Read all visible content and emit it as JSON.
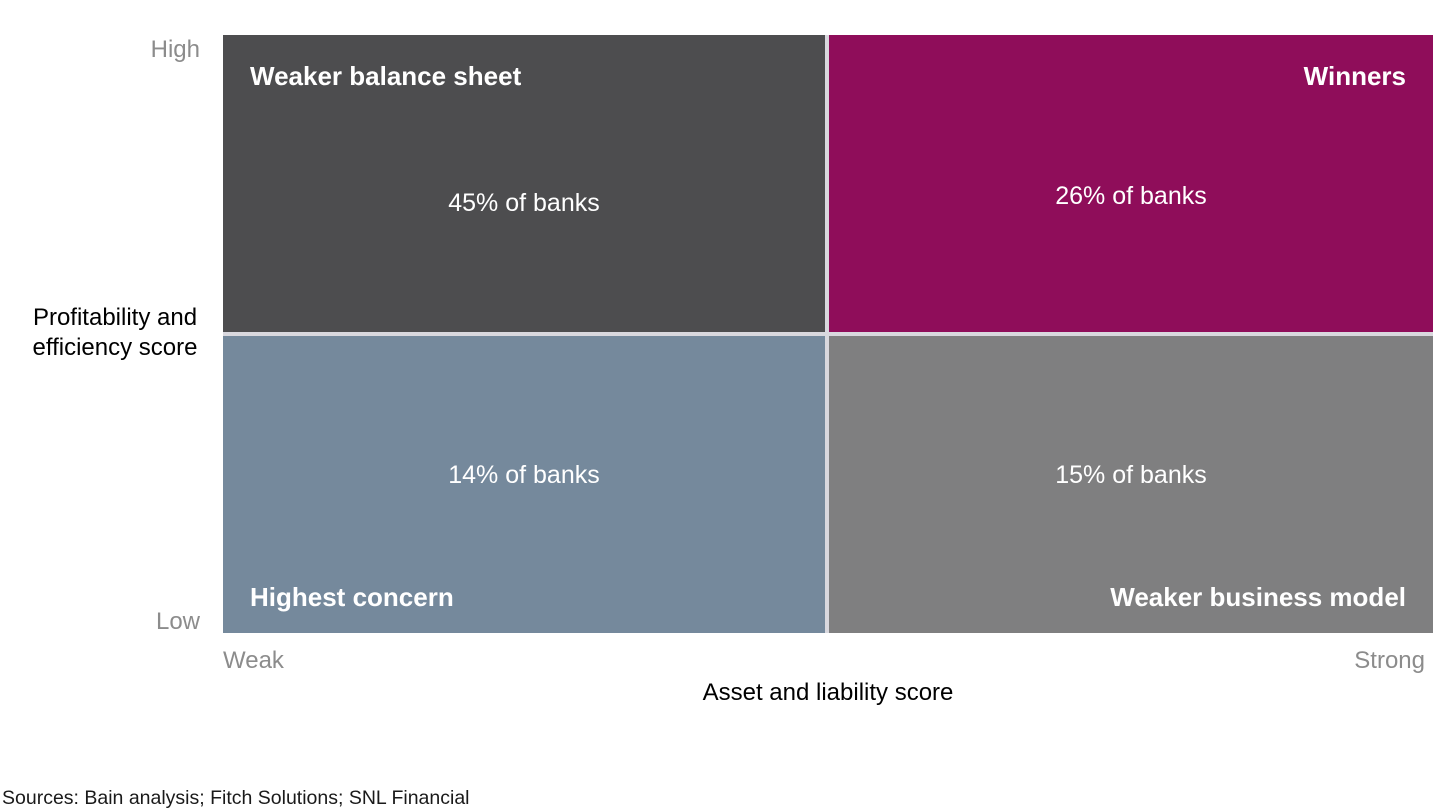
{
  "colors": {
    "quad_top_left": "#4d4d4f",
    "quad_top_right": "#8f0d5a",
    "quad_bottom_left": "#75899c",
    "quad_bottom_right": "#7f7f80",
    "divider": "#d9d8de",
    "axis_gray_text": "#8c8c8c",
    "quad_text": "#ffffff"
  },
  "quadrants": {
    "top_left": {
      "label": "Weaker balance sheet",
      "value": "45% of banks",
      "color": "#4d4d4f"
    },
    "top_right": {
      "label": "Winners",
      "value": "26% of banks",
      "color": "#8f0d5a"
    },
    "bottom_left": {
      "label": "Highest concern",
      "value": "14% of banks",
      "color": "#75899c"
    },
    "bottom_right": {
      "label": "Weaker business model",
      "value": "15% of banks",
      "color": "#7f7f80"
    }
  },
  "axes": {
    "y_high": "High",
    "y_low": "Low",
    "y_title_line1": "Profitability and",
    "y_title_line2": "efficiency score",
    "x_low": "Weak",
    "x_high": "Strong",
    "x_title": "Asset and liability score"
  },
  "source_note": "Sources: Bain analysis; Fitch Solutions; SNL Financial",
  "chart_data": {
    "type": "heatmap",
    "subtype": "2x2-quadrant-matrix",
    "title": "",
    "xlabel": "Asset and liability score",
    "ylabel": "Profitability and efficiency score",
    "x_categories": [
      "Weak",
      "Strong"
    ],
    "y_categories": [
      "High",
      "Low"
    ],
    "cells": [
      {
        "x": "Weak",
        "y": "High",
        "label": "Weaker balance sheet",
        "value_pct": 45,
        "value_text": "45% of banks",
        "color": "#4d4d4f"
      },
      {
        "x": "Strong",
        "y": "High",
        "label": "Winners",
        "value_pct": 26,
        "value_text": "26% of banks",
        "color": "#8f0d5a"
      },
      {
        "x": "Weak",
        "y": "Low",
        "label": "Highest concern",
        "value_pct": 14,
        "value_text": "14% of banks",
        "color": "#75899c"
      },
      {
        "x": "Strong",
        "y": "Low",
        "label": "Weaker business model",
        "value_pct": 15,
        "value_text": "15% of banks",
        "color": "#7f7f80"
      }
    ],
    "grid": false,
    "legend_position": "none",
    "annotations": [
      "Sources: Bain analysis; Fitch Solutions; SNL Financial"
    ]
  }
}
